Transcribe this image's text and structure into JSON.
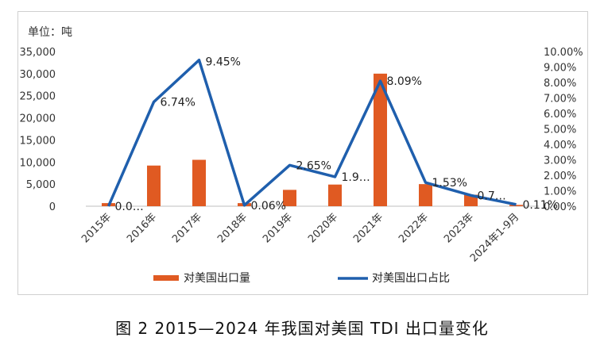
{
  "chart_data": {
    "type": "bar+line",
    "unit_label": "单位：吨",
    "categories": [
      "2015年",
      "2016年",
      "2017年",
      "2018年",
      "2019年",
      "2020年",
      "2021年",
      "2022年",
      "2023年",
      "2024年1-9月"
    ],
    "series": [
      {
        "name": "对美国出口量",
        "type": "bar",
        "axis": "left",
        "color": "#E05A22",
        "values": [
          700,
          9200,
          10500,
          700,
          3700,
          4900,
          30000,
          5000,
          2600,
          300
        ]
      },
      {
        "name": "对美国出口占比",
        "type": "line",
        "axis": "right",
        "color": "#1F5FAD",
        "values": [
          0.0,
          6.74,
          9.45,
          0.06,
          2.65,
          1.9,
          8.09,
          1.53,
          0.7,
          0.11
        ],
        "data_labels": [
          "0.0…",
          "6.74%",
          "9.45%",
          "0.06%",
          "2.65%",
          "1.9…",
          "8.09%",
          "1.53%",
          "0.7…",
          "0.11%"
        ]
      }
    ],
    "y_left": {
      "min": 0,
      "max": 35000,
      "step": 5000,
      "tick_labels": [
        "0",
        "5,000",
        "10,000",
        "15,000",
        "20,000",
        "25,000",
        "30,000",
        "35,000"
      ]
    },
    "y_right": {
      "min": 0,
      "max": 10,
      "step": 1,
      "tick_labels": [
        "0.00%",
        "1.00%",
        "2.00%",
        "3.00%",
        "4.00%",
        "5.00%",
        "6.00%",
        "7.00%",
        "8.00%",
        "9.00%",
        "10.00%"
      ]
    },
    "grid": false,
    "legend_position": "bottom",
    "caption": "图 2  2015—2024 年我国对美国 TDI 出口量变化"
  }
}
